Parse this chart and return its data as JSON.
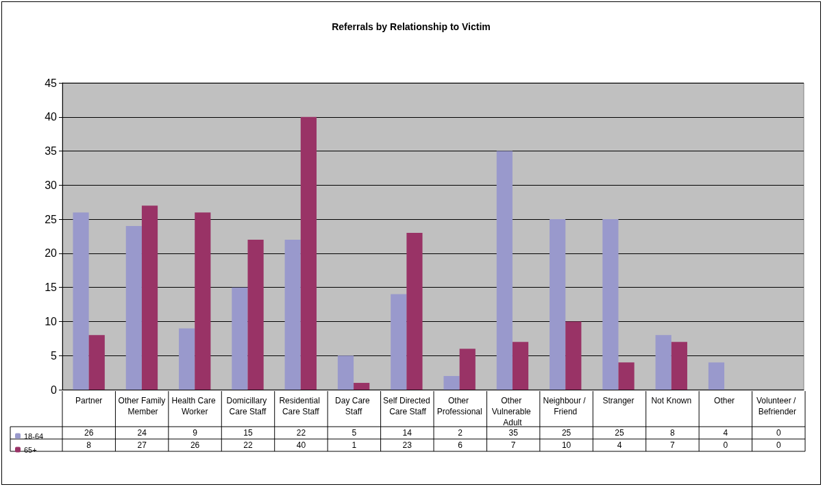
{
  "chart_data": {
    "type": "bar",
    "title": "Referrals by Relationship to Victim",
    "categories": [
      "Partner",
      "Other Family Member",
      "Health Care Worker",
      "Domicillary Care Staff",
      "Residential Care Staff",
      "Day Care Staff",
      "Self Directed Care Staff",
      "Other Professional",
      "Other Vulnerable Adult",
      "Neighbour / Friend",
      "Stranger",
      "Not Known",
      "Other",
      "Volunteer / Befriender"
    ],
    "series": [
      {
        "name": "18-64",
        "color": "#9999cc",
        "values": [
          26,
          24,
          9,
          15,
          22,
          5,
          14,
          2,
          35,
          25,
          25,
          8,
          4,
          0
        ]
      },
      {
        "name": "65+",
        "color": "#993366",
        "values": [
          8,
          27,
          26,
          22,
          40,
          1,
          23,
          6,
          7,
          10,
          4,
          7,
          0,
          0
        ]
      }
    ],
    "ylim": [
      0,
      45
    ],
    "yticks": [
      0,
      5,
      10,
      15,
      20,
      25,
      30,
      35,
      40,
      45
    ],
    "grid": "y",
    "legend": "bottom left",
    "data_labels": true
  }
}
